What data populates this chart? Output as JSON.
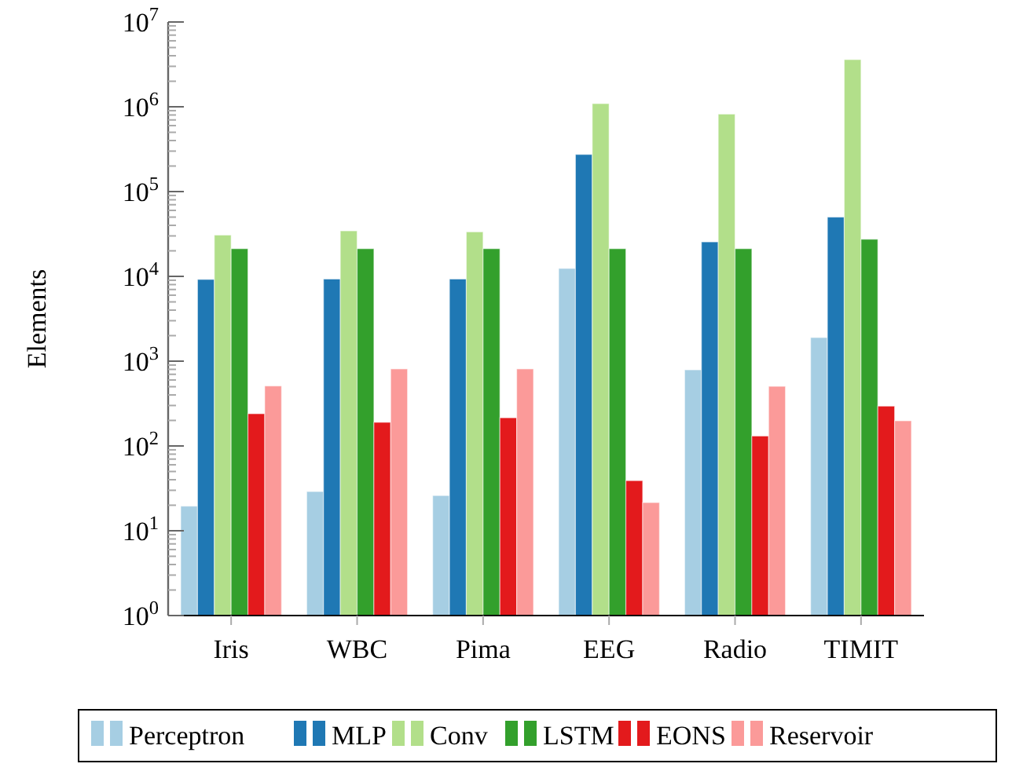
{
  "chart_data": {
    "type": "bar",
    "ylabel": "Elements",
    "log": true,
    "legend": "bottom",
    "grid": false,
    "categories": [
      "Iris",
      "WBC",
      "Pima",
      "EEG",
      "Radio",
      "TIMIT"
    ],
    "ylim": [
      1,
      10000000
    ],
    "yticks": [
      {
        "value": 1,
        "label": "10$^{0}$"
      },
      {
        "value": 2,
        "label": null
      },
      {
        "value": 3,
        "label": null
      },
      {
        "value": 4,
        "label": null
      },
      {
        "value": 5,
        "label": null
      },
      {
        "value": 6,
        "label": null
      },
      {
        "value": 7,
        "label": null
      },
      {
        "value": 8,
        "label": null
      },
      {
        "value": 9,
        "label": null
      },
      {
        "value": 10,
        "label": "10$^{1}$"
      },
      {
        "value": 20,
        "label": null
      },
      {
        "value": 30,
        "label": null
      },
      {
        "value": 40,
        "label": null
      },
      {
        "value": 50,
        "label": null
      },
      {
        "value": 60,
        "label": null
      },
      {
        "value": 70,
        "label": null
      },
      {
        "value": 80,
        "label": null
      },
      {
        "value": 90,
        "label": null
      },
      {
        "value": 100,
        "label": "10$^{2}$"
      },
      {
        "value": 200,
        "label": null
      },
      {
        "value": 300,
        "label": null
      },
      {
        "value": 400,
        "label": null
      },
      {
        "value": 500,
        "label": null
      },
      {
        "value": 600,
        "label": null
      },
      {
        "value": 700,
        "label": null
      },
      {
        "value": 800,
        "label": null
      },
      {
        "value": 900,
        "label": null
      },
      {
        "value": 1000,
        "label": "10$^{3}$"
      },
      {
        "value": 2000,
        "label": null
      },
      {
        "value": 3000,
        "label": null
      },
      {
        "value": 4000,
        "label": null
      },
      {
        "value": 5000,
        "label": null
      },
      {
        "value": 6000,
        "label": null
      },
      {
        "value": 7000,
        "label": null
      },
      {
        "value": 8000,
        "label": null
      },
      {
        "value": 9000,
        "label": null
      },
      {
        "value": 10000,
        "label": "10$^{4}$"
      },
      {
        "value": 20000,
        "label": null
      },
      {
        "value": 30000,
        "label": null
      },
      {
        "value": 40000,
        "label": null
      },
      {
        "value": 50000,
        "label": null
      },
      {
        "value": 60000,
        "label": null
      },
      {
        "value": 70000,
        "label": null
      },
      {
        "value": 80000,
        "label": null
      },
      {
        "value": 90000,
        "label": null
      },
      {
        "value": 100000,
        "label": "10$^{5}$"
      },
      {
        "value": 200000,
        "label": null
      },
      {
        "value": 300000,
        "label": null
      },
      {
        "value": 400000,
        "label": null
      },
      {
        "value": 500000,
        "label": null
      },
      {
        "value": 600000,
        "label": null
      },
      {
        "value": 700000,
        "label": null
      },
      {
        "value": 800000,
        "label": null
      },
      {
        "value": 900000,
        "label": null
      },
      {
        "value": 1000000,
        "label": "10$^{6}$"
      },
      {
        "value": 2000000,
        "label": null
      },
      {
        "value": 3000000,
        "label": null
      },
      {
        "value": 4000000,
        "label": null
      },
      {
        "value": 5000000,
        "label": null
      },
      {
        "value": 6000000,
        "label": null
      },
      {
        "value": 7000000,
        "label": null
      },
      {
        "value": 8000000,
        "label": null
      },
      {
        "value": 9000000,
        "label": null
      },
      {
        "value": 10000000,
        "label": "10$^{7}$"
      }
    ],
    "series": [
      {
        "name": "Perceptron",
        "color": "#a6cee3",
        "values": [
          19.5,
          29,
          26,
          12400,
          790,
          1900
        ]
      },
      {
        "name": "MLP",
        "color": "#1f78b4",
        "values": [
          9200,
          9300,
          9300,
          274000,
          25500,
          50000
        ]
      },
      {
        "name": "Conv",
        "color": "#b2df8a",
        "values": [
          30700,
          34400,
          33500,
          1090000,
          820000,
          3600000
        ]
      },
      {
        "name": "LSTM",
        "color": "#33a02c",
        "values": [
          21200,
          21200,
          21200,
          21200,
          21200,
          27400
        ]
      },
      {
        "name": "EONS",
        "color": "#e31a1c",
        "values": [
          240,
          190,
          215,
          39,
          131,
          295
        ]
      },
      {
        "name": "Reservoir",
        "color": "#fb9a99",
        "values": [
          510,
          810,
          810,
          21.5,
          505,
          198
        ]
      }
    ]
  }
}
